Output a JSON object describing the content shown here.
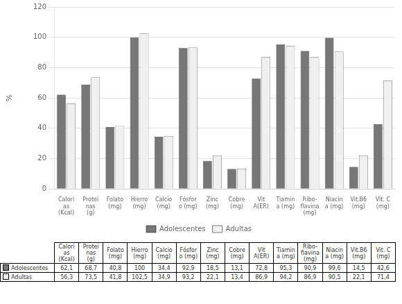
{
  "chart_data": {
    "type": "bar",
    "categories": [
      "Calori\nas\n(Kcal)",
      "Protei\nnas\n(g)",
      "Folato\n(mg)",
      "Hierro\n(mg)",
      "Calcio\n(mg)",
      "Fósfor\no (mg)",
      "Zinc\n(mg)",
      "Cobre\n(mg)",
      "Vit\nA(ER)",
      "Tiamin\na (mg)",
      "Ribo-\nflavina\n(mg)",
      "Niacin\na (mg)",
      "Vit.B6\n(mg)",
      "Vit. C\n(mg)"
    ],
    "series": [
      {
        "name": "Adolescentes",
        "color": "#777777",
        "values": [
          62.1,
          68.7,
          40.8,
          100,
          34.4,
          92.9,
          18.5,
          13.1,
          72.8,
          95.3,
          90.9,
          99.6,
          14.5,
          42.6
        ],
        "value_labels": [
          "62,1",
          "68,7",
          "40,8",
          "100",
          "34,4",
          "92,9",
          "18,5",
          "13,1",
          "72,8",
          "95,3",
          "90,9",
          "99,6",
          "14,5",
          "42,6"
        ]
      },
      {
        "name": "Adultas",
        "color": "#f0f0f0",
        "values": [
          56.3,
          73.5,
          41.8,
          102.5,
          34.9,
          93.2,
          22.1,
          13.4,
          86.9,
          94.2,
          86.9,
          90.5,
          22.1,
          71.4
        ],
        "value_labels": [
          "56,3",
          "73,5",
          "41,8",
          "102,5",
          "34,9",
          "93,2",
          "22,1",
          "13,4",
          "86,9",
          "94,2",
          "86,9",
          "90,5",
          "22,1",
          "71,4"
        ]
      }
    ],
    "ylabel": "%",
    "ylim": [
      0,
      120
    ],
    "yticks": [
      0,
      20,
      40,
      60,
      80,
      100,
      120
    ],
    "grid": true,
    "legend": "bottom"
  }
}
